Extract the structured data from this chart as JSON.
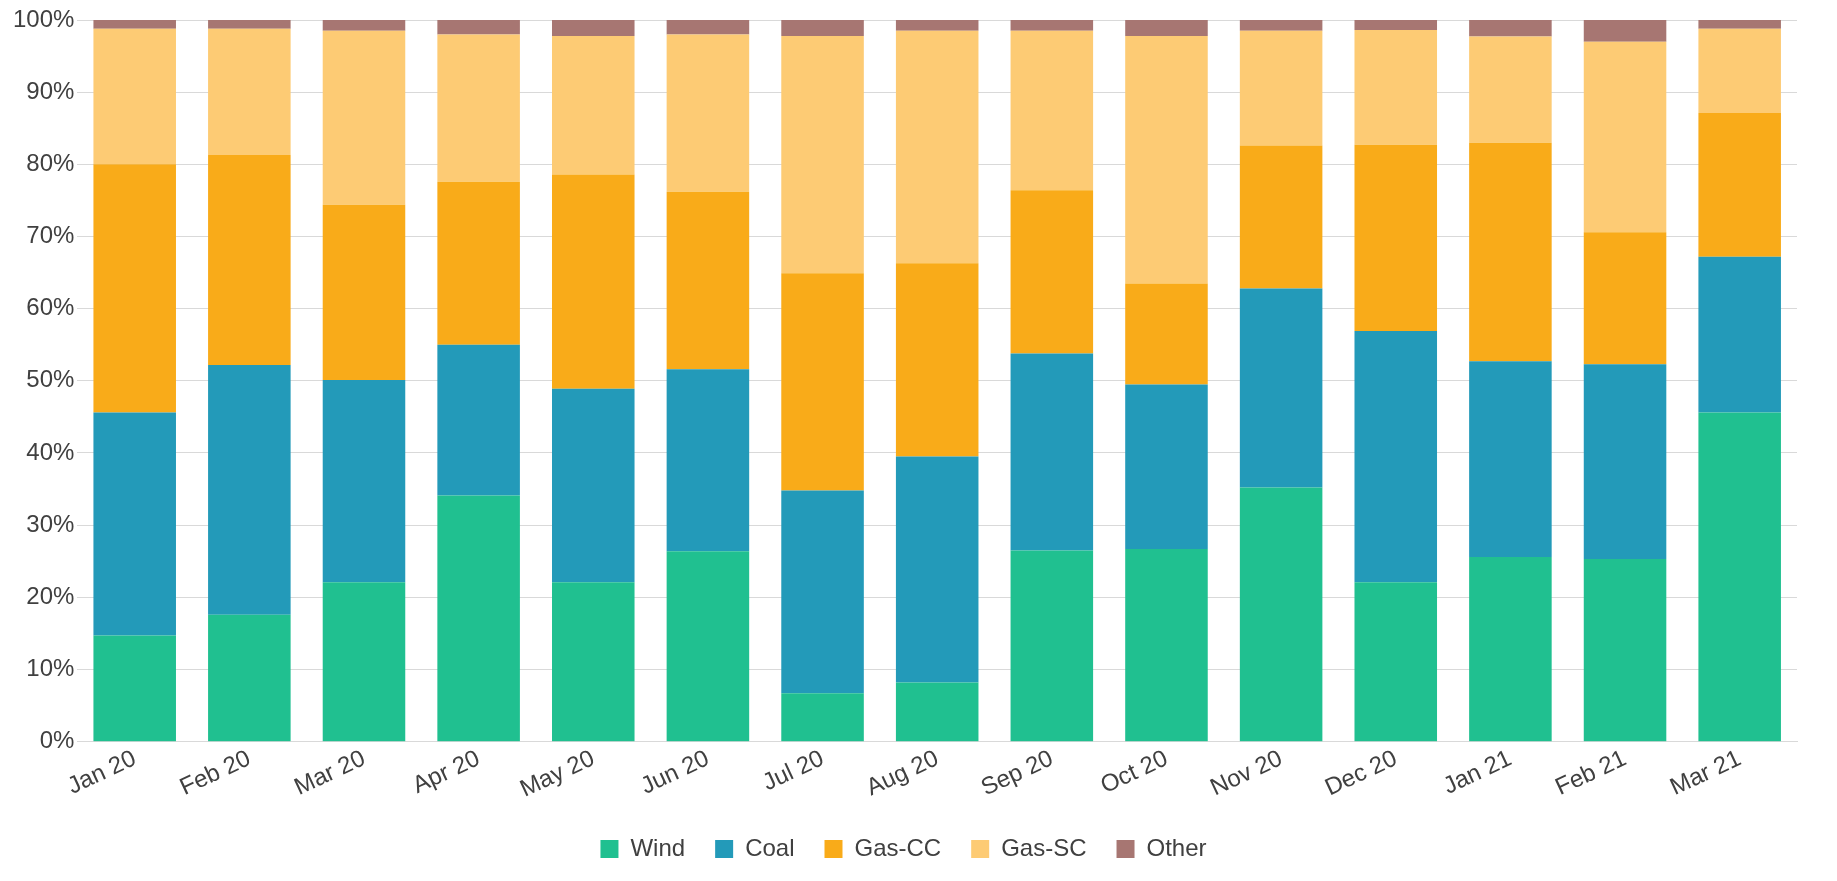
{
  "chart_data": {
    "type": "bar",
    "stacked": true,
    "categories": [
      "Jan 20",
      "Feb 20",
      "Mar 20",
      "Apr 20",
      "May 20",
      "Jun 20",
      "Jul 20",
      "Aug 20",
      "Sep 20",
      "Oct 20",
      "Nov 20",
      "Dec 20",
      "Jan 21",
      "Feb 21",
      "Mar 21"
    ],
    "series": [
      {
        "name": "Wind",
        "color": "#20c090",
        "values": [
          14.7,
          17.6,
          22.1,
          34.1,
          22.1,
          26.4,
          6.7,
          8.2,
          26.5,
          26.7,
          35.2,
          22.1,
          25.6,
          25.3,
          45.6
        ]
      },
      {
        "name": "Coal",
        "color": "#239ab9",
        "values": [
          30.9,
          34.6,
          28.0,
          20.9,
          26.8,
          25.2,
          28.1,
          31.3,
          27.3,
          22.8,
          27.6,
          34.8,
          27.1,
          27.0,
          21.6
        ]
      },
      {
        "name": "Gas-CC",
        "color": "#f9ab19",
        "values": [
          34.4,
          29.1,
          24.3,
          22.6,
          29.7,
          24.6,
          30.1,
          26.8,
          22.6,
          14.0,
          19.8,
          25.8,
          30.3,
          18.3,
          19.9
        ]
      },
      {
        "name": "Gas-SC",
        "color": "#fdcb74",
        "values": [
          18.8,
          17.5,
          24.1,
          20.4,
          19.2,
          21.8,
          32.9,
          32.2,
          22.1,
          34.3,
          15.9,
          15.9,
          14.7,
          26.4,
          11.7
        ]
      },
      {
        "name": "Other",
        "color": "#a77672",
        "values": [
          1.2,
          1.2,
          1.5,
          2.0,
          2.2,
          2.0,
          2.2,
          1.5,
          1.5,
          2.2,
          1.5,
          1.4,
          2.3,
          3.0,
          1.2
        ]
      }
    ],
    "ylim": [
      0,
      100
    ],
    "yticks": [
      {
        "value": 0,
        "label": "0%"
      },
      {
        "value": 10,
        "label": "10%"
      },
      {
        "value": 20,
        "label": "20%"
      },
      {
        "value": 30,
        "label": "30%"
      },
      {
        "value": 40,
        "label": "40%"
      },
      {
        "value": 50,
        "label": "50%"
      },
      {
        "value": 60,
        "label": "60%"
      },
      {
        "value": 70,
        "label": "70%"
      },
      {
        "value": 80,
        "label": "80%"
      },
      {
        "value": 90,
        "label": "90%"
      },
      {
        "value": 100,
        "label": "100%"
      }
    ],
    "grid": "y",
    "legend": "bottom"
  }
}
